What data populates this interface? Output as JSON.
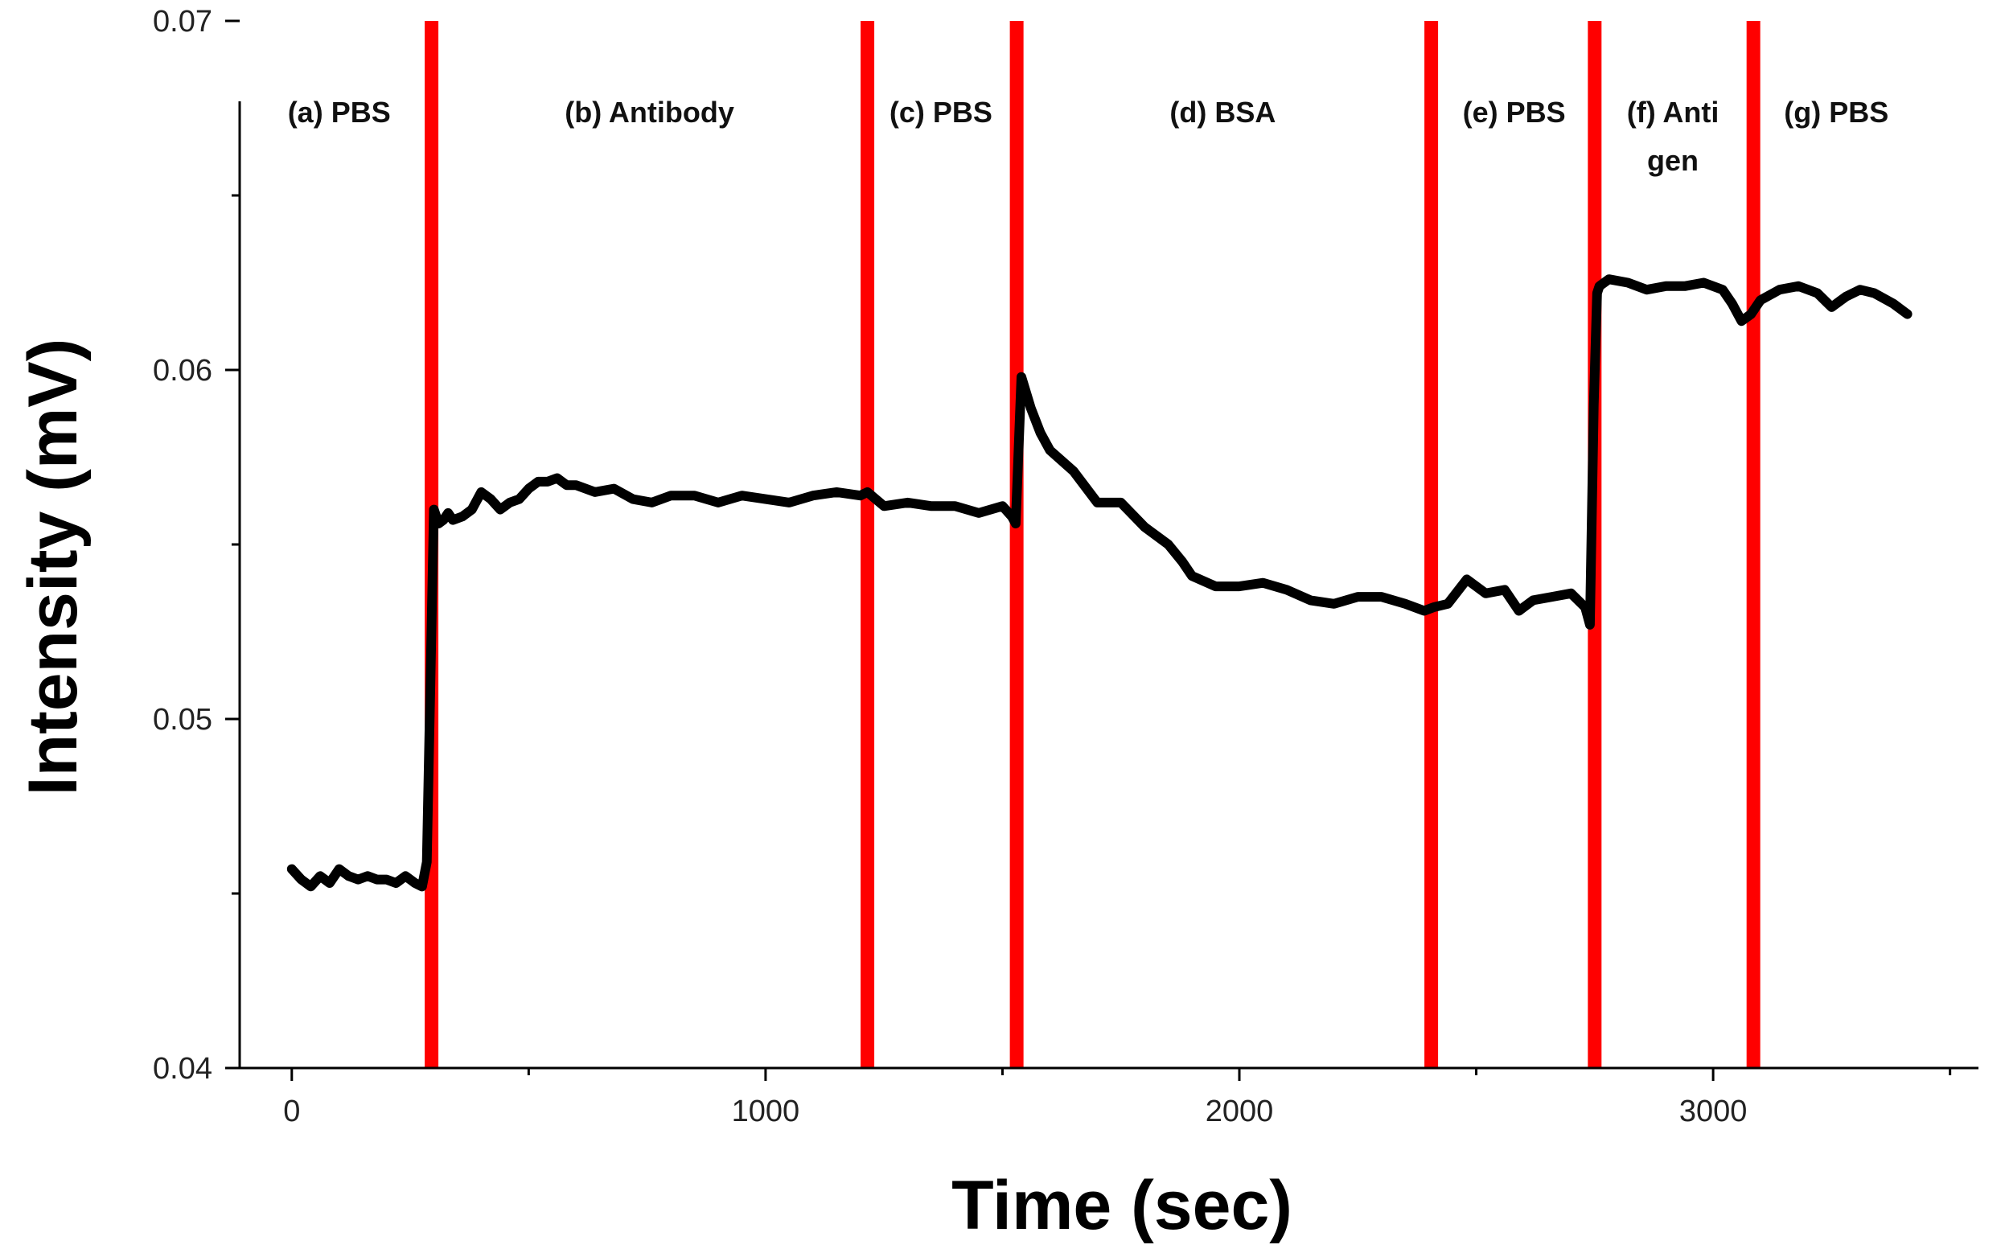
{
  "chart_data": {
    "type": "line",
    "title": "",
    "xlabel": "Time (sec)",
    "ylabel": "Intensity (mV)",
    "xlim": [
      -110,
      3560
    ],
    "ylim": [
      0.04,
      0.07
    ],
    "xticks": [
      0,
      1000,
      2000,
      3000
    ],
    "xtick_labels": [
      "0",
      "1000",
      "2000",
      "3000"
    ],
    "yticks": [
      0.04,
      0.05,
      0.06,
      0.07
    ],
    "ytick_labels": [
      "0.04",
      "0.05",
      "0.06",
      "0.07"
    ],
    "grid": false,
    "line_color": "#000000",
    "divider_color": "#ff0000",
    "phase_boundaries": [
      295,
      1215,
      1530,
      2405,
      2750,
      3085
    ],
    "phases": [
      {
        "label": "(a) PBS",
        "x": 100
      },
      {
        "label": "(b) Antibody",
        "x": 755
      },
      {
        "label": "(c) PBS",
        "x": 1370
      },
      {
        "label": "(d) BSA",
        "x": 1965
      },
      {
        "label": "(e) PBS",
        "x": 2580
      },
      {
        "label": "(f) Anti\ngen",
        "x": 2915
      },
      {
        "label": "(g) PBS",
        "x": 3260
      }
    ],
    "series": [
      {
        "x": [
          0,
          20,
          40,
          60,
          80,
          100,
          120,
          140,
          160,
          180,
          200,
          220,
          240,
          260,
          275,
          285,
          300,
          310,
          320,
          330,
          340,
          360,
          380,
          400,
          420,
          440,
          460,
          480,
          500,
          520,
          540,
          560,
          580,
          600,
          640,
          680,
          720,
          760,
          800,
          850,
          900,
          950,
          1000,
          1050,
          1100,
          1150,
          1200,
          1215,
          1250,
          1300,
          1350,
          1400,
          1450,
          1500,
          1520,
          1528,
          1540,
          1560,
          1580,
          1600,
          1650,
          1700,
          1750,
          1800,
          1850,
          1880,
          1900,
          1950,
          2000,
          2050,
          2100,
          2150,
          2200,
          2250,
          2300,
          2350,
          2390,
          2410,
          2440,
          2480,
          2520,
          2560,
          2590,
          2620,
          2660,
          2700,
          2730,
          2740,
          2748,
          2755,
          2760,
          2780,
          2820,
          2860,
          2900,
          2940,
          2980,
          3020,
          3040,
          3060,
          3080,
          3100,
          3140,
          3180,
          3220,
          3250,
          3280,
          3310,
          3340,
          3380,
          3410
        ],
        "y": [
          0.0457,
          0.0454,
          0.0452,
          0.0455,
          0.0453,
          0.0457,
          0.0455,
          0.0454,
          0.0455,
          0.0454,
          0.0454,
          0.0453,
          0.0455,
          0.0453,
          0.0452,
          0.0459,
          0.056,
          0.0556,
          0.0557,
          0.0559,
          0.0557,
          0.0558,
          0.056,
          0.0565,
          0.0563,
          0.056,
          0.0562,
          0.0563,
          0.0566,
          0.0568,
          0.0568,
          0.0569,
          0.0567,
          0.0567,
          0.0565,
          0.0566,
          0.0563,
          0.0562,
          0.0564,
          0.0564,
          0.0562,
          0.0564,
          0.0563,
          0.0562,
          0.0564,
          0.0565,
          0.0564,
          0.0565,
          0.0561,
          0.0562,
          0.0561,
          0.0561,
          0.0559,
          0.0561,
          0.0558,
          0.0556,
          0.0598,
          0.0589,
          0.0582,
          0.0577,
          0.0571,
          0.0562,
          0.0562,
          0.0555,
          0.055,
          0.0545,
          0.0541,
          0.0538,
          0.0538,
          0.0539,
          0.0537,
          0.0534,
          0.0533,
          0.0535,
          0.0535,
          0.0533,
          0.0531,
          0.0532,
          0.0533,
          0.054,
          0.0536,
          0.0537,
          0.0531,
          0.0534,
          0.0535,
          0.0536,
          0.0532,
          0.0527,
          0.059,
          0.0622,
          0.0624,
          0.0626,
          0.0625,
          0.0623,
          0.0624,
          0.0624,
          0.0625,
          0.0623,
          0.0619,
          0.0614,
          0.0616,
          0.062,
          0.0623,
          0.0624,
          0.0622,
          0.0618,
          0.0621,
          0.0623,
          0.0622,
          0.0619,
          0.0616
        ]
      }
    ]
  }
}
